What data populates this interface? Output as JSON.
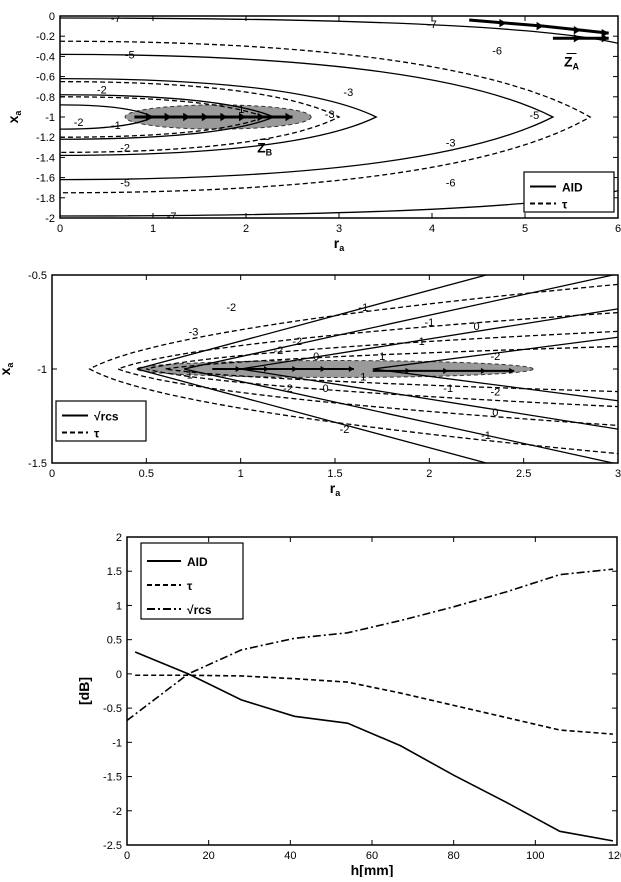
{
  "chart_data": [
    {
      "type": "line",
      "xlabel_main": "r",
      "xlabel_sub": "a",
      "ylabel_main": "x",
      "ylabel_sub": "a",
      "xlim": [
        0,
        6
      ],
      "ylim": [
        -2,
        0
      ],
      "xticks": [
        0,
        1,
        2,
        3,
        4,
        5,
        6
      ],
      "yticks": [
        0,
        -0.2,
        -0.4,
        -0.6,
        -0.8,
        -1,
        -1.2,
        -1.4,
        -1.6,
        -1.8,
        -2
      ],
      "legend": {
        "position": "bottom-right",
        "entries": [
          {
            "label": "AID",
            "style": "solid"
          },
          {
            "label": "τ",
            "style": "dashed"
          }
        ]
      },
      "series": [
        {
          "name": "AID",
          "style": "solid",
          "contours": [
            {
              "level": -7,
              "apex": [
                4.8,
                -0.02
              ],
              "spread": 0.25,
              "dir": 1
            },
            {
              "level": -7,
              "apex": [
                4.8,
                -1.98
              ],
              "spread": 0.25,
              "dir": -1
            },
            {
              "level": -5,
              "center": -1,
              "apex_r": 5.3,
              "halfwidth": 0.62
            },
            {
              "level": -3,
              "center": -1,
              "apex_r": 3.4,
              "halfwidth": 0.38
            },
            {
              "level": -2,
              "center": -1,
              "apex_r": 2.3,
              "halfwidth": 0.22
            },
            {
              "level": -1,
              "center": -1,
              "apex_r": 1.0,
              "halfwidth": 0.12
            }
          ]
        },
        {
          "name": "τ",
          "style": "dashed",
          "contours": [
            {
              "level": -6,
              "center": -1,
              "apex_r": 5.7,
              "halfwidth": 0.75
            },
            {
              "level": -3,
              "center": -1,
              "apex_r": 3.0,
              "halfwidth": 0.35
            },
            {
              "level": -2,
              "center": -1,
              "apex_r": 2.2,
              "halfwidth": 0.2
            }
          ]
        }
      ],
      "contour_labels": [
        {
          "text": "-7",
          "x": 0.6,
          "y": -0.02
        },
        {
          "text": "-7",
          "x": 4.0,
          "y": -0.08
        },
        {
          "text": "-5",
          "x": 0.75,
          "y": -0.38
        },
        {
          "text": "-6",
          "x": 4.7,
          "y": -0.34
        },
        {
          "text": "-2",
          "x": 0.45,
          "y": -0.73
        },
        {
          "text": "-3",
          "x": 3.1,
          "y": -0.75
        },
        {
          "text": "1",
          "x": 1.95,
          "y": -0.92
        },
        {
          "text": "-3",
          "x": 2.9,
          "y": -0.97
        },
        {
          "text": "-5",
          "x": 5.1,
          "y": -0.98
        },
        {
          "text": "-2",
          "x": 0.2,
          "y": -1.05
        },
        {
          "text": "-1",
          "x": 0.6,
          "y": -1.08
        },
        {
          "text": "-2",
          "x": 0.7,
          "y": -1.3
        },
        {
          "text": "-3",
          "x": 4.2,
          "y": -1.25
        },
        {
          "text": "-5",
          "x": 0.7,
          "y": -1.65
        },
        {
          "text": "-6",
          "x": 4.2,
          "y": -1.65
        },
        {
          "text": "-7",
          "x": 5.1,
          "y": -1.85
        },
        {
          "text": "-7",
          "x": 1.2,
          "y": -1.98
        }
      ],
      "shaded_region": {
        "center": [
          1.7,
          -1
        ],
        "rx": 1.0,
        "ry": 0.12
      },
      "trajectories": [
        {
          "x": [
            0.8,
            1.0,
            1.2,
            1.4,
            1.6,
            1.8,
            2.0,
            2.2,
            2.5
          ],
          "y": [
            -1,
            -1,
            -1,
            -1,
            -1,
            -1,
            -1,
            -1,
            -1
          ]
        },
        {
          "x": [
            4.4,
            4.8,
            5.2,
            5.6,
            5.9
          ],
          "y": [
            -0.04,
            -0.07,
            -0.1,
            -0.14,
            -0.17
          ]
        },
        {
          "x": [
            5.3,
            5.6,
            5.9
          ],
          "y": [
            -0.22,
            -0.22,
            -0.22
          ]
        }
      ],
      "vector_labels": [
        {
          "main": "Z",
          "sub": "B",
          "x": 2.2,
          "y": -1.35
        },
        {
          "main": "Z",
          "sub": "A",
          "x": 5.5,
          "y": -0.5
        }
      ]
    },
    {
      "type": "line",
      "xlabel_main": "r",
      "xlabel_sub": "a",
      "ylabel_main": "x",
      "ylabel_sub": "a",
      "xlim": [
        0,
        3
      ],
      "ylim": [
        -1.5,
        -0.5
      ],
      "xticks": [
        0,
        0.5,
        1,
        1.5,
        2,
        2.5,
        3
      ],
      "yticks": [
        -0.5,
        -1,
        -1.5
      ],
      "legend": {
        "position": "bottom-left",
        "entries": [
          {
            "label": "√rcs",
            "style": "solid"
          },
          {
            "label": "τ",
            "style": "dashed"
          }
        ]
      },
      "series": [
        {
          "name": "√rcs",
          "style": "solid",
          "contours": [
            {
              "level": -2,
              "apex": [
                0.45,
                -1
              ],
              "slope_top": 0.27,
              "slope_bot": -0.27
            },
            {
              "level": -1,
              "apex": [
                0.7,
                -1
              ],
              "slope_top": 0.22,
              "slope_bot": -0.22
            },
            {
              "level": 0,
              "apex": [
                1.0,
                -1
              ],
              "slope_top": 0.16,
              "slope_bot": -0.16
            },
            {
              "level": 1,
              "apex": [
                1.7,
                -1
              ],
              "slope_top": 0.13,
              "slope_bot": -0.13
            }
          ]
        },
        {
          "name": "τ",
          "style": "dashed",
          "contours": [
            {
              "level": -3,
              "apex": [
                0.2,
                -1
              ],
              "spread": 0.45
            },
            {
              "level": -2,
              "apex": [
                0.35,
                -1
              ],
              "spread": 0.3
            },
            {
              "level": -1,
              "apex": [
                0.5,
                -1
              ],
              "spread": 0.2
            },
            {
              "level": 0,
              "apex": [
                0.6,
                -1
              ],
              "spread": 0.12
            }
          ]
        }
      ],
      "contour_labels": [
        {
          "text": "-2",
          "x": 0.95,
          "y": -0.67
        },
        {
          "text": "-1",
          "x": 1.65,
          "y": -0.67
        },
        {
          "text": "-3",
          "x": 0.75,
          "y": -0.8
        },
        {
          "text": "-2",
          "x": 1.3,
          "y": -0.85
        },
        {
          "text": "-1",
          "x": 2.0,
          "y": -0.75
        },
        {
          "text": "0",
          "x": 2.25,
          "y": -0.77
        },
        {
          "text": "-1",
          "x": 1.95,
          "y": -0.85
        },
        {
          "text": "-2",
          "x": 1.2,
          "y": -0.9
        },
        {
          "text": "0",
          "x": 1.4,
          "y": -0.93
        },
        {
          "text": "1",
          "x": 1.75,
          "y": -0.93
        },
        {
          "text": "-2",
          "x": 2.35,
          "y": -0.93
        },
        {
          "text": "-1",
          "x": 0.72,
          "y": -1.03
        },
        {
          "text": "1",
          "x": 1.65,
          "y": -1.04
        },
        {
          "text": "-2",
          "x": 1.25,
          "y": -1.1
        },
        {
          "text": "0",
          "x": 1.45,
          "y": -1.1
        },
        {
          "text": "-1",
          "x": 2.1,
          "y": -1.1
        },
        {
          "text": "-2",
          "x": 2.35,
          "y": -1.12
        },
        {
          "text": "0",
          "x": 2.35,
          "y": -1.23
        },
        {
          "text": "-2",
          "x": 1.55,
          "y": -1.32
        },
        {
          "text": "-1",
          "x": 2.3,
          "y": -1.35
        }
      ],
      "shaded_region": {
        "center": [
          1.5,
          -1
        ],
        "rx": 1.05,
        "ry": 0.045
      },
      "trajectories": [
        {
          "x": [
            0.85,
            1.0,
            1.15,
            1.3,
            1.45,
            1.6
          ],
          "y": [
            -1,
            -1,
            -1,
            -1,
            -1,
            -1
          ]
        },
        {
          "x": [
            1.7,
            1.9,
            2.1,
            2.3,
            2.45
          ],
          "y": [
            -1.01,
            -1.01,
            -1.01,
            -1.01,
            -1.01
          ]
        }
      ]
    },
    {
      "type": "line",
      "xlabel": "h[mm]",
      "ylabel": "[dB]",
      "xlim": [
        0,
        120
      ],
      "ylim": [
        -2.5,
        2
      ],
      "xticks": [
        0,
        20,
        40,
        60,
        80,
        100,
        120
      ],
      "yticks": [
        2,
        1.5,
        1,
        0.5,
        0,
        -0.5,
        -1,
        -1.5,
        -2,
        -2.5
      ],
      "legend": {
        "position": "top-left",
        "entries": [
          {
            "label": "AID",
            "style": "solid"
          },
          {
            "label": "τ",
            "style": "dashed"
          },
          {
            "label": "√rcs",
            "style": "dashdot"
          }
        ]
      },
      "series": [
        {
          "name": "AID",
          "style": "solid",
          "x": [
            2,
            15,
            28,
            41,
            54,
            67,
            80,
            93,
            106,
            119
          ],
          "y": [
            0.32,
            0.0,
            -0.38,
            -0.62,
            -0.72,
            -1.05,
            -1.48,
            -1.88,
            -2.3,
            -2.44
          ]
        },
        {
          "name": "τ",
          "style": "dashed",
          "x": [
            2,
            15,
            28,
            41,
            54,
            67,
            80,
            93,
            106,
            119
          ],
          "y": [
            -0.02,
            -0.02,
            -0.03,
            -0.07,
            -0.12,
            -0.28,
            -0.46,
            -0.64,
            -0.82,
            -0.88
          ]
        },
        {
          "name": "√rcs",
          "style": "dashdot",
          "x": [
            0,
            15,
            28,
            41,
            54,
            67,
            80,
            93,
            106,
            119
          ],
          "y": [
            -0.68,
            0.0,
            0.35,
            0.52,
            0.6,
            0.78,
            0.98,
            1.2,
            1.45,
            1.53
          ]
        }
      ]
    }
  ]
}
